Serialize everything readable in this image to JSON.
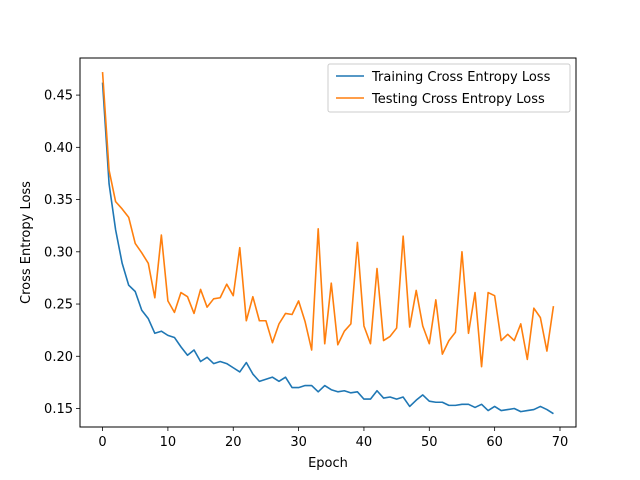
{
  "chart_data": {
    "type": "line",
    "xlabel": "Epoch",
    "ylabel": "Cross Entropy Loss",
    "xlim": [
      -3.45,
      72.45
    ],
    "ylim": [
      0.1323,
      0.4855
    ],
    "xticks": [
      0,
      10,
      20,
      30,
      40,
      50,
      60,
      70
    ],
    "yticks": [
      0.15,
      0.2,
      0.25,
      0.3,
      0.35,
      0.4,
      0.45
    ],
    "grid": false,
    "legend_position": "top-right",
    "series": [
      {
        "name": "Training Cross Entropy Loss",
        "color": "#1f77b4",
        "values": [
          0.462,
          0.365,
          0.321,
          0.289,
          0.268,
          0.262,
          0.244,
          0.236,
          0.222,
          0.224,
          0.22,
          0.218,
          0.209,
          0.201,
          0.206,
          0.195,
          0.199,
          0.193,
          0.195,
          0.193,
          0.189,
          0.185,
          0.194,
          0.183,
          0.176,
          0.178,
          0.18,
          0.176,
          0.18,
          0.17,
          0.17,
          0.172,
          0.172,
          0.166,
          0.172,
          0.168,
          0.166,
          0.167,
          0.165,
          0.166,
          0.159,
          0.159,
          0.167,
          0.16,
          0.161,
          0.159,
          0.161,
          0.152,
          0.158,
          0.163,
          0.157,
          0.156,
          0.156,
          0.153,
          0.153,
          0.154,
          0.154,
          0.151,
          0.154,
          0.148,
          0.152,
          0.148,
          0.149,
          0.15,
          0.147,
          0.148,
          0.149,
          0.152,
          0.149,
          0.145
        ]
      },
      {
        "name": "Testing Cross Entropy Loss",
        "color": "#ff7f0e",
        "values": [
          0.472,
          0.378,
          0.348,
          0.341,
          0.333,
          0.308,
          0.299,
          0.289,
          0.256,
          0.316,
          0.253,
          0.242,
          0.261,
          0.257,
          0.241,
          0.264,
          0.247,
          0.255,
          0.256,
          0.269,
          0.258,
          0.304,
          0.234,
          0.257,
          0.234,
          0.234,
          0.213,
          0.231,
          0.241,
          0.24,
          0.253,
          0.233,
          0.206,
          0.322,
          0.212,
          0.27,
          0.211,
          0.224,
          0.231,
          0.309,
          0.229,
          0.212,
          0.284,
          0.215,
          0.219,
          0.227,
          0.315,
          0.228,
          0.263,
          0.229,
          0.212,
          0.254,
          0.202,
          0.215,
          0.223,
          0.3,
          0.222,
          0.261,
          0.19,
          0.261,
          0.258,
          0.215,
          0.221,
          0.215,
          0.231,
          0.197,
          0.246,
          0.237,
          0.205,
          0.248
        ]
      }
    ]
  }
}
